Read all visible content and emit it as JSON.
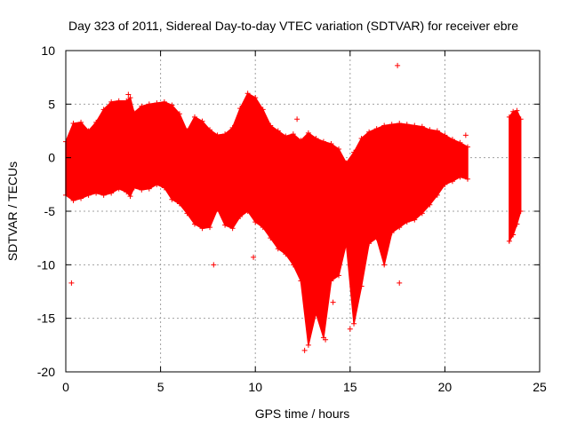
{
  "chart_data": {
    "type": "scatter",
    "title": "Day 323 of 2011, Sidereal Day-to-day VTEC variation (SDTVAR) for receiver ebre",
    "xlabel": "GPS time / hours",
    "ylabel": "SDTVAR / TECUs",
    "xlim": [
      0,
      25
    ],
    "ylim": [
      -20,
      10
    ],
    "xticks": [
      0,
      5,
      10,
      15,
      20,
      25
    ],
    "yticks": [
      -20,
      -15,
      -10,
      -5,
      0,
      5,
      10
    ],
    "grid": true,
    "marker": "+",
    "colors": {
      "series": "#ff0000",
      "grid": "#a0a0a0",
      "axes": "#000000"
    },
    "envelope": {
      "x": [
        0.0,
        0.4,
        0.8,
        1.2,
        1.6,
        2.0,
        2.4,
        2.8,
        3.2,
        3.4,
        3.6,
        4.0,
        4.4,
        4.8,
        5.2,
        5.6,
        6.0,
        6.4,
        6.8,
        7.2,
        7.6,
        8.0,
        8.4,
        8.8,
        9.2,
        9.6,
        10.0,
        10.4,
        10.8,
        11.2,
        11.6,
        12.0,
        12.4,
        12.8,
        13.2,
        13.6,
        14.0,
        14.4,
        14.8,
        15.2,
        15.6,
        16.0,
        16.4,
        16.8,
        17.2,
        17.6,
        18.0,
        18.4,
        18.8,
        19.2,
        19.6,
        20.0,
        20.4,
        20.8,
        21.2
      ],
      "upper": [
        1.5,
        3.2,
        3.3,
        2.5,
        3.3,
        4.5,
        5.2,
        5.3,
        5.3,
        5.6,
        4.2,
        4.8,
        5.0,
        5.1,
        5.2,
        4.9,
        4.1,
        2.5,
        3.8,
        3.4,
        2.6,
        2.1,
        2.2,
        2.8,
        4.6,
        6.0,
        5.6,
        4.5,
        3.0,
        2.5,
        2.0,
        2.2,
        1.6,
        2.3,
        1.8,
        1.5,
        1.3,
        0.8,
        -0.5,
        0.5,
        1.8,
        2.4,
        2.7,
        3.0,
        3.1,
        3.2,
        3.1,
        3.0,
        2.9,
        2.6,
        2.5,
        2.1,
        1.7,
        1.4,
        1.0
      ],
      "lower": [
        -3.5,
        -4.0,
        -3.8,
        -3.5,
        -3.3,
        -3.5,
        -3.3,
        -2.9,
        -3.2,
        -3.6,
        -2.8,
        -3.0,
        -2.9,
        -2.5,
        -2.8,
        -3.9,
        -4.3,
        -5.2,
        -6.2,
        -6.6,
        -6.5,
        -4.8,
        -6.3,
        -6.6,
        -5.5,
        -5.0,
        -6.0,
        -6.5,
        -7.5,
        -8.5,
        -9.0,
        -10.0,
        -11.5,
        -17.5,
        -14.5,
        -16.8,
        -11.5,
        -11.0,
        -8.0,
        -15.5,
        -12.0,
        -8.0,
        -7.5,
        -10.0,
        -7.0,
        -6.5,
        -6.0,
        -5.8,
        -5.2,
        -4.4,
        -3.5,
        -2.5,
        -2.2,
        -1.8,
        -2.0
      ]
    },
    "envelope2": {
      "x": [
        23.4,
        23.6,
        23.8,
        24.0
      ],
      "upper": [
        3.8,
        4.3,
        4.4,
        3.6
      ],
      "lower": [
        -7.8,
        -7.2,
        -6.2,
        -5.0
      ]
    },
    "outliers": [
      {
        "x": 0.3,
        "y": -11.7
      },
      {
        "x": 17.5,
        "y": 8.6
      },
      {
        "x": 17.6,
        "y": -11.7
      },
      {
        "x": 9.9,
        "y": -9.3
      },
      {
        "x": 7.8,
        "y": -10.0
      },
      {
        "x": 3.3,
        "y": 5.9
      },
      {
        "x": 15.0,
        "y": -16.0
      },
      {
        "x": 12.6,
        "y": -18.0
      },
      {
        "x": 13.7,
        "y": -17.0
      },
      {
        "x": 12.2,
        "y": 3.6
      },
      {
        "x": 21.1,
        "y": 2.1
      },
      {
        "x": 14.1,
        "y": -13.5
      }
    ]
  }
}
